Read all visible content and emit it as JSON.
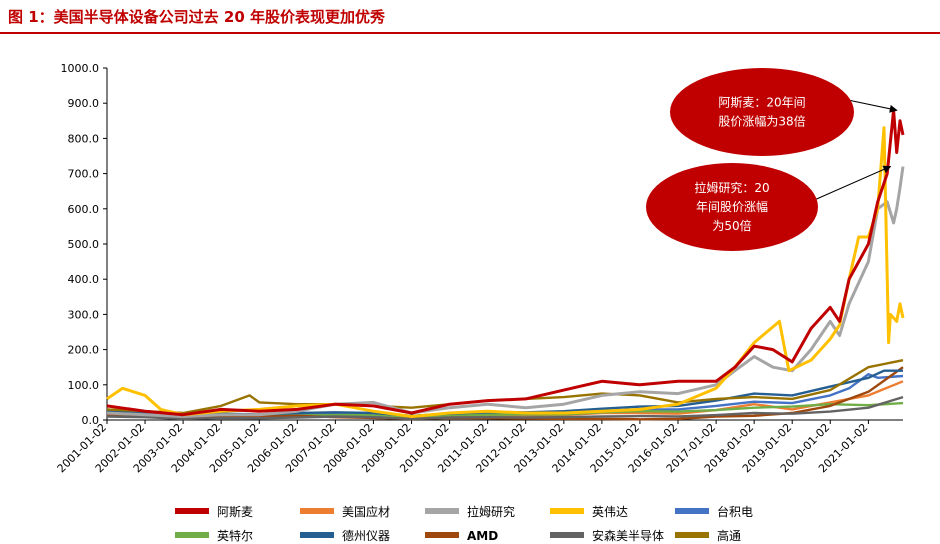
{
  "figure_title": "图 1：美国半导体设备公司过去 20 年股价表现更加优秀",
  "colors": {
    "title": "#c00000",
    "annotation_bubble": "#c00000"
  },
  "chart_data": {
    "type": "line",
    "title": "",
    "xlabel": "",
    "ylabel": "",
    "ylim": [
      0,
      1000
    ],
    "grid": false,
    "legend_position": "bottom",
    "y_ticks": [
      "0.0",
      "100.0",
      "200.0",
      "300.0",
      "400.0",
      "500.0",
      "600.0",
      "700.0",
      "800.0",
      "900.0",
      "1000.0"
    ],
    "x_ticks": [
      "2001-01-02",
      "2002-01-02",
      "2003-01-02",
      "2004-01-02",
      "2005-01-02",
      "2006-01-02",
      "2007-01-02",
      "2008-01-02",
      "2009-01-02",
      "2010-01-02",
      "2011-01-02",
      "2012-01-02",
      "2013-01-02",
      "2014-01-02",
      "2015-01-02",
      "2016-01-02",
      "2017-01-02",
      "2018-01-02",
      "2019-01-02",
      "2020-01-02",
      "2021-01-02"
    ],
    "x_range": [
      "2001-01-02",
      "2021-11-30"
    ],
    "annotations": [
      {
        "text_lines": [
          "阿斯麦：20年间",
          "股价涨幅为38倍"
        ],
        "points_to": "阿斯麦",
        "target": [
          "2021-10-01",
          880
        ]
      },
      {
        "text_lines": [
          "拉姆研究：20",
          "年间股价涨幅",
          "为50倍"
        ],
        "points_to": "拉姆研究",
        "target": [
          "2021-08-01",
          720
        ]
      }
    ],
    "series": [
      {
        "name": "阿斯麦",
        "color": "#c00000",
        "x": [
          "2001-01-02",
          "2002-01-02",
          "2003-01-02",
          "2004-01-02",
          "2005-01-02",
          "2006-01-02",
          "2007-01-02",
          "2008-01-02",
          "2009-01-02",
          "2010-01-02",
          "2011-01-02",
          "2012-01-02",
          "2013-01-02",
          "2014-01-02",
          "2015-01-02",
          "2016-01-02",
          "2017-01-02",
          "2017-07-01",
          "2018-01-02",
          "2018-07-01",
          "2019-01-02",
          "2019-07-01",
          "2020-01-02",
          "2020-04-01",
          "2020-07-01",
          "2021-01-02",
          "2021-04-01",
          "2021-07-01",
          "2021-09-01",
          "2021-10-01",
          "2021-11-01",
          "2021-11-30"
        ],
        "values": [
          40,
          25,
          15,
          30,
          25,
          30,
          45,
          40,
          20,
          45,
          55,
          60,
          85,
          110,
          100,
          110,
          110,
          150,
          210,
          200,
          165,
          260,
          320,
          280,
          400,
          500,
          620,
          700,
          880,
          760,
          850,
          810
        ]
      },
      {
        "name": "美国应材",
        "color": "#ed7d31",
        "x": [
          "2001-01-02",
          "2002-01-02",
          "2003-01-02",
          "2004-01-02",
          "2005-01-02",
          "2006-01-02",
          "2007-01-02",
          "2008-01-02",
          "2009-01-02",
          "2010-01-02",
          "2011-01-02",
          "2012-01-02",
          "2013-01-02",
          "2014-01-02",
          "2015-01-02",
          "2016-01-02",
          "2017-01-02",
          "2018-01-02",
          "2019-01-02",
          "2020-01-02",
          "2021-01-02",
          "2021-11-30"
        ],
        "values": [
          25,
          20,
          10,
          15,
          12,
          14,
          15,
          14,
          8,
          12,
          13,
          11,
          14,
          20,
          20,
          18,
          28,
          45,
          30,
          50,
          70,
          110
        ]
      },
      {
        "name": "拉姆研究",
        "color": "#a5a5a5",
        "x": [
          "2001-01-02",
          "2002-01-02",
          "2003-01-02",
          "2004-01-02",
          "2005-01-02",
          "2006-01-02",
          "2007-01-02",
          "2008-01-02",
          "2009-01-02",
          "2010-01-02",
          "2011-01-02",
          "2012-01-02",
          "2013-01-02",
          "2014-01-02",
          "2015-01-02",
          "2016-01-02",
          "2017-01-02",
          "2017-07-01",
          "2018-01-02",
          "2018-07-01",
          "2019-01-02",
          "2019-07-01",
          "2020-01-02",
          "2020-04-01",
          "2020-07-01",
          "2021-01-02",
          "2021-04-01",
          "2021-07-01",
          "2021-09-01",
          "2021-10-01",
          "2021-11-01",
          "2021-11-30"
        ],
        "values": [
          20,
          15,
          10,
          15,
          15,
          25,
          45,
          50,
          20,
          35,
          45,
          35,
          45,
          70,
          80,
          75,
          100,
          140,
          180,
          150,
          140,
          200,
          280,
          240,
          330,
          450,
          600,
          620,
          560,
          600,
          660,
          720
        ]
      },
      {
        "name": "英伟达",
        "color": "#ffc000",
        "x": [
          "2001-01-02",
          "2001-06-01",
          "2002-01-02",
          "2002-06-01",
          "2003-01-02",
          "2004-01-02",
          "2005-01-02",
          "2006-01-02",
          "2007-01-02",
          "2008-01-02",
          "2009-01-02",
          "2010-01-02",
          "2011-01-02",
          "2012-01-02",
          "2013-01-02",
          "2014-01-02",
          "2015-01-02",
          "2016-01-02",
          "2017-01-02",
          "2017-07-01",
          "2018-01-02",
          "2018-09-01",
          "2018-12-01",
          "2019-07-01",
          "2020-01-02",
          "2020-04-01",
          "2020-07-01",
          "2020-10-01",
          "2021-01-02",
          "2021-04-01",
          "2021-06-01",
          "2021-07-15",
          "2021-08-01",
          "2021-10-01",
          "2021-11-01",
          "2021-11-30"
        ],
        "values": [
          60,
          90,
          70,
          30,
          15,
          25,
          30,
          40,
          45,
          25,
          10,
          20,
          25,
          20,
          20,
          25,
          30,
          45,
          90,
          150,
          220,
          280,
          140,
          170,
          230,
          270,
          400,
          520,
          520,
          600,
          830,
          220,
          300,
          280,
          330,
          290
        ]
      },
      {
        "name": "台积电",
        "color": "#4472c4",
        "x": [
          "2001-01-02",
          "2002-01-02",
          "2003-01-02",
          "2004-01-02",
          "2005-01-02",
          "2006-01-02",
          "2007-01-02",
          "2008-01-02",
          "2009-01-02",
          "2010-01-02",
          "2011-01-02",
          "2012-01-02",
          "2013-01-02",
          "2014-01-02",
          "2015-01-02",
          "2016-01-02",
          "2017-01-02",
          "2018-01-02",
          "2019-01-02",
          "2020-01-02",
          "2020-07-01",
          "2021-01-02",
          "2021-04-01",
          "2021-11-30"
        ],
        "values": [
          20,
          15,
          12,
          14,
          12,
          14,
          15,
          14,
          12,
          15,
          18,
          20,
          22,
          26,
          30,
          30,
          40,
          52,
          48,
          70,
          90,
          130,
          120,
          125
        ]
      },
      {
        "name": "英特尔",
        "color": "#70ad47",
        "x": [
          "2001-01-02",
          "2002-01-02",
          "2003-01-02",
          "2004-01-02",
          "2005-01-02",
          "2006-01-02",
          "2007-01-02",
          "2008-01-02",
          "2009-01-02",
          "2010-01-02",
          "2011-01-02",
          "2012-01-02",
          "2013-01-02",
          "2014-01-02",
          "2015-01-02",
          "2016-01-02",
          "2017-01-02",
          "2018-01-02",
          "2019-01-02",
          "2020-01-02",
          "2021-01-02",
          "2021-11-30"
        ],
        "values": [
          20,
          18,
          12,
          16,
          14,
          13,
          14,
          15,
          10,
          14,
          15,
          16,
          16,
          22,
          25,
          24,
          28,
          35,
          38,
          45,
          42,
          48
        ]
      },
      {
        "name": "德州仪器",
        "color": "#255e91",
        "x": [
          "2001-01-02",
          "2002-01-02",
          "2003-01-02",
          "2004-01-02",
          "2005-01-02",
          "2006-01-02",
          "2007-01-02",
          "2008-01-02",
          "2009-01-02",
          "2010-01-02",
          "2011-01-02",
          "2012-01-02",
          "2013-01-02",
          "2014-01-02",
          "2015-01-02",
          "2016-01-02",
          "2017-01-02",
          "2018-01-02",
          "2019-01-02",
          "2020-01-02",
          "2021-01-02",
          "2021-06-01",
          "2021-11-30"
        ],
        "values": [
          25,
          20,
          12,
          18,
          16,
          20,
          22,
          20,
          12,
          18,
          22,
          22,
          25,
          32,
          38,
          40,
          55,
          75,
          70,
          95,
          120,
          140,
          140
        ]
      },
      {
        "name": "AMD",
        "color": "#9e480e",
        "x": [
          "2001-01-02",
          "2002-01-02",
          "2003-01-02",
          "2004-01-02",
          "2005-01-02",
          "2006-01-02",
          "2007-01-02",
          "2008-01-02",
          "2009-01-02",
          "2010-01-02",
          "2011-01-02",
          "2012-01-02",
          "2013-01-02",
          "2014-01-02",
          "2015-01-02",
          "2016-01-02",
          "2017-01-02",
          "2018-01-02",
          "2019-01-02",
          "2020-01-02",
          "2021-01-02",
          "2021-11-30"
        ],
        "values": [
          15,
          12,
          5,
          8,
          10,
          12,
          8,
          6,
          3,
          6,
          5,
          4,
          3,
          3,
          2,
          3,
          10,
          12,
          20,
          40,
          80,
          150
        ]
      },
      {
        "name": "安森美半导体",
        "color": "#636363",
        "x": [
          "2001-01-02",
          "2002-01-02",
          "2003-01-02",
          "2004-01-02",
          "2005-01-02",
          "2006-01-02",
          "2007-01-02",
          "2008-01-02",
          "2009-01-02",
          "2010-01-02",
          "2011-01-02",
          "2012-01-02",
          "2013-01-02",
          "2014-01-02",
          "2015-01-02",
          "2016-01-02",
          "2017-01-02",
          "2018-01-02",
          "2019-01-02",
          "2020-01-02",
          "2021-01-02",
          "2021-11-30"
        ],
        "values": [
          10,
          8,
          3,
          6,
          5,
          7,
          10,
          8,
          3,
          7,
          8,
          7,
          8,
          10,
          11,
          10,
          14,
          20,
          18,
          24,
          35,
          65
        ]
      },
      {
        "name": "高通",
        "color": "#997300",
        "x": [
          "2001-01-02",
          "2002-01-02",
          "2003-01-02",
          "2004-01-02",
          "2004-10-01",
          "2005-01-02",
          "2006-01-02",
          "2007-01-02",
          "2008-01-02",
          "2009-01-02",
          "2010-01-02",
          "2011-01-02",
          "2012-01-02",
          "2013-01-02",
          "2014-01-02",
          "2015-01-02",
          "2016-01-02",
          "2017-01-02",
          "2018-01-02",
          "2019-01-02",
          "2020-01-02",
          "2021-01-02",
          "2021-11-30"
        ],
        "values": [
          30,
          25,
          20,
          40,
          70,
          50,
          45,
          45,
          40,
          35,
          45,
          55,
          60,
          65,
          75,
          70,
          50,
          60,
          65,
          60,
          85,
          150,
          170
        ]
      }
    ]
  }
}
